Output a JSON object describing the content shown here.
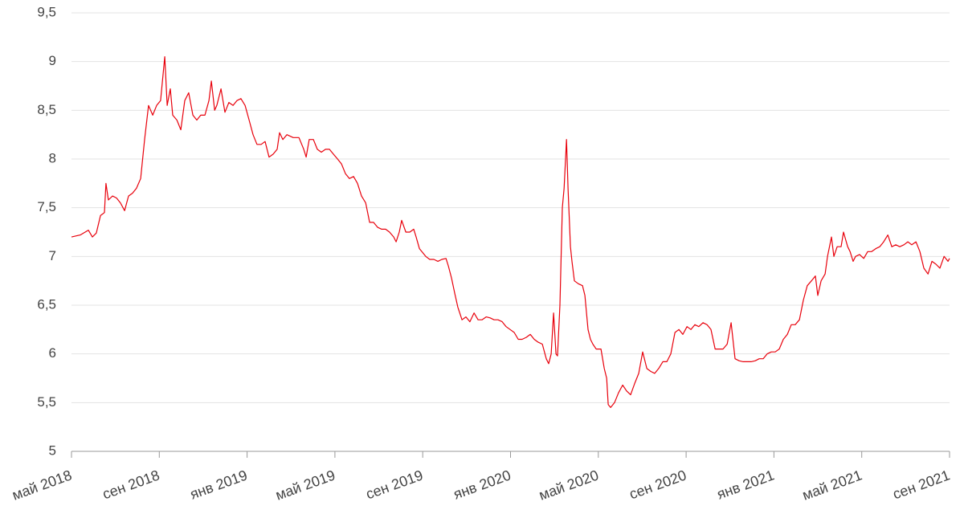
{
  "chart_data": {
    "type": "line",
    "color": "#e8000b",
    "grid": true,
    "xlim": [
      0,
      40
    ],
    "xticks": [
      {
        "value": 0,
        "label": "май 2018"
      },
      {
        "value": 4,
        "label": "сен 2018"
      },
      {
        "value": 8,
        "label": "янв 2019"
      },
      {
        "value": 12,
        "label": "май 2019"
      },
      {
        "value": 16,
        "label": "сен 2019"
      },
      {
        "value": 20,
        "label": "янв 2020"
      },
      {
        "value": 24,
        "label": "май 2020"
      },
      {
        "value": 28,
        "label": "сен 2020"
      },
      {
        "value": 32,
        "label": "янв 2021"
      },
      {
        "value": 36,
        "label": "май 2021"
      },
      {
        "value": 40,
        "label": "сен 2021"
      }
    ],
    "ylim": [
      5,
      9.5
    ],
    "yticks": [
      5,
      {
        "value": 5.5,
        "label": "5,5"
      },
      6,
      {
        "value": 6.5,
        "label": "6,5"
      },
      7,
      {
        "value": 7.5,
        "label": "7,5"
      },
      8,
      {
        "value": 8.5,
        "label": "8,5"
      },
      9,
      {
        "value": 9.5,
        "label": "9,5"
      }
    ],
    "x": [
      0,
      0.4,
      0.77,
      0.95,
      1.13,
      1.32,
      1.5,
      1.57,
      1.68,
      1.87,
      2.05,
      2.23,
      2.42,
      2.6,
      2.78,
      2.96,
      3.15,
      3.33,
      3.51,
      3.7,
      3.88,
      4.06,
      4.25,
      4.36,
      4.5,
      4.61,
      4.8,
      4.98,
      5.16,
      5.34,
      5.53,
      5.71,
      5.89,
      6.08,
      6.26,
      6.37,
      6.52,
      6.62,
      6.81,
      6.99,
      7.17,
      7.36,
      7.54,
      7.72,
      7.91,
      8.09,
      8.27,
      8.45,
      8.64,
      8.82,
      9.0,
      9.19,
      9.37,
      9.48,
      9.63,
      9.81,
      10.1,
      10.36,
      10.58,
      10.69,
      10.83,
      11.02,
      11.2,
      11.38,
      11.57,
      11.75,
      11.93,
      12.12,
      12.3,
      12.48,
      12.66,
      12.85,
      13.03,
      13.21,
      13.4,
      13.58,
      13.76,
      13.94,
      14.13,
      14.31,
      14.49,
      14.68,
      14.79,
      14.93,
      15.04,
      15.23,
      15.41,
      15.59,
      15.7,
      15.85,
      15.96,
      16.14,
      16.32,
      16.51,
      16.69,
      16.87,
      17.06,
      17.17,
      17.31,
      17.46,
      17.6,
      17.79,
      17.97,
      18.15,
      18.34,
      18.52,
      18.7,
      18.89,
      19.07,
      19.25,
      19.43,
      19.62,
      19.8,
      19.98,
      20.17,
      20.35,
      20.53,
      20.72,
      20.9,
      21.08,
      21.26,
      21.45,
      21.63,
      21.74,
      21.85,
      21.96,
      22.07,
      22.14,
      22.25,
      22.36,
      22.44,
      22.55,
      22.62,
      22.73,
      22.8,
      22.91,
      23.09,
      23.28,
      23.39,
      23.53,
      23.64,
      23.75,
      23.9,
      24.12,
      24.27,
      24.38,
      24.45,
      24.56,
      24.74,
      24.92,
      25.11,
      25.29,
      25.47,
      25.66,
      25.84,
      26.02,
      26.21,
      26.39,
      26.57,
      26.75,
      26.94,
      27.12,
      27.3,
      27.49,
      27.67,
      27.85,
      28.04,
      28.22,
      28.4,
      28.58,
      28.77,
      28.95,
      29.13,
      29.32,
      29.5,
      29.68,
      29.87,
      30.05,
      30.23,
      30.41,
      30.6,
      30.78,
      30.96,
      31.15,
      31.33,
      31.51,
      31.69,
      31.88,
      32.06,
      32.24,
      32.43,
      32.61,
      32.79,
      32.97,
      33.16,
      33.34,
      33.52,
      33.71,
      33.89,
      34.0,
      34.15,
      34.33,
      34.44,
      34.62,
      34.73,
      34.88,
      35.06,
      35.17,
      35.36,
      35.47,
      35.61,
      35.72,
      35.9,
      36.09,
      36.27,
      36.45,
      36.64,
      36.82,
      37.0,
      37.19,
      37.37,
      37.55,
      37.73,
      37.92,
      38.1,
      38.28,
      38.47,
      38.65,
      38.83,
      39.02,
      39.2,
      39.38,
      39.56,
      39.75,
      39.93,
      40.0
    ],
    "values": [
      7.2,
      7.22,
      7.27,
      7.2,
      7.24,
      7.42,
      7.45,
      7.75,
      7.58,
      7.62,
      7.6,
      7.55,
      7.47,
      7.62,
      7.65,
      7.7,
      7.8,
      8.2,
      8.55,
      8.45,
      8.55,
      8.6,
      9.05,
      8.55,
      8.72,
      8.45,
      8.4,
      8.3,
      8.6,
      8.68,
      8.45,
      8.4,
      8.45,
      8.45,
      8.6,
      8.8,
      8.5,
      8.55,
      8.72,
      8.48,
      8.58,
      8.55,
      8.6,
      8.62,
      8.55,
      8.4,
      8.25,
      8.15,
      8.15,
      8.18,
      8.02,
      8.05,
      8.1,
      8.27,
      8.2,
      8.25,
      8.22,
      8.22,
      8.1,
      8.02,
      8.2,
      8.2,
      8.1,
      8.07,
      8.1,
      8.1,
      8.05,
      8.0,
      7.95,
      7.85,
      7.8,
      7.82,
      7.75,
      7.62,
      7.55,
      7.35,
      7.35,
      7.3,
      7.28,
      7.28,
      7.25,
      7.2,
      7.15,
      7.25,
      7.37,
      7.25,
      7.25,
      7.28,
      7.2,
      7.08,
      7.05,
      7.0,
      6.97,
      6.97,
      6.95,
      6.97,
      6.98,
      6.9,
      6.78,
      6.62,
      6.48,
      6.35,
      6.38,
      6.33,
      6.42,
      6.35,
      6.35,
      6.38,
      6.37,
      6.35,
      6.35,
      6.33,
      6.28,
      6.25,
      6.22,
      6.15,
      6.15,
      6.17,
      6.2,
      6.15,
      6.12,
      6.1,
      5.95,
      5.9,
      6.0,
      6.42,
      6.0,
      5.98,
      6.5,
      7.5,
      7.7,
      8.2,
      7.7,
      7.1,
      6.95,
      6.75,
      6.72,
      6.7,
      6.6,
      6.25,
      6.15,
      6.1,
      6.05,
      6.05,
      5.85,
      5.75,
      5.48,
      5.45,
      5.5,
      5.6,
      5.68,
      5.62,
      5.58,
      5.7,
      5.8,
      6.02,
      5.85,
      5.82,
      5.8,
      5.85,
      5.92,
      5.92,
      6.0,
      6.22,
      6.25,
      6.2,
      6.28,
      6.25,
      6.3,
      6.28,
      6.32,
      6.3,
      6.25,
      6.05,
      6.05,
      6.05,
      6.1,
      6.32,
      5.95,
      5.93,
      5.92,
      5.92,
      5.92,
      5.93,
      5.95,
      5.95,
      6.0,
      6.02,
      6.02,
      6.05,
      6.15,
      6.2,
      6.3,
      6.3,
      6.35,
      6.55,
      6.7,
      6.75,
      6.8,
      6.6,
      6.75,
      6.82,
      7.0,
      7.2,
      7.0,
      7.1,
      7.1,
      7.25,
      7.1,
      7.05,
      6.95,
      7.0,
      7.02,
      6.98,
      7.05,
      7.05,
      7.08,
      7.1,
      7.15,
      7.22,
      7.1,
      7.12,
      7.1,
      7.12,
      7.15,
      7.12,
      7.15,
      7.05,
      6.88,
      6.82,
      6.95,
      6.92,
      6.88,
      7.0,
      6.95,
      6.98
    ]
  }
}
